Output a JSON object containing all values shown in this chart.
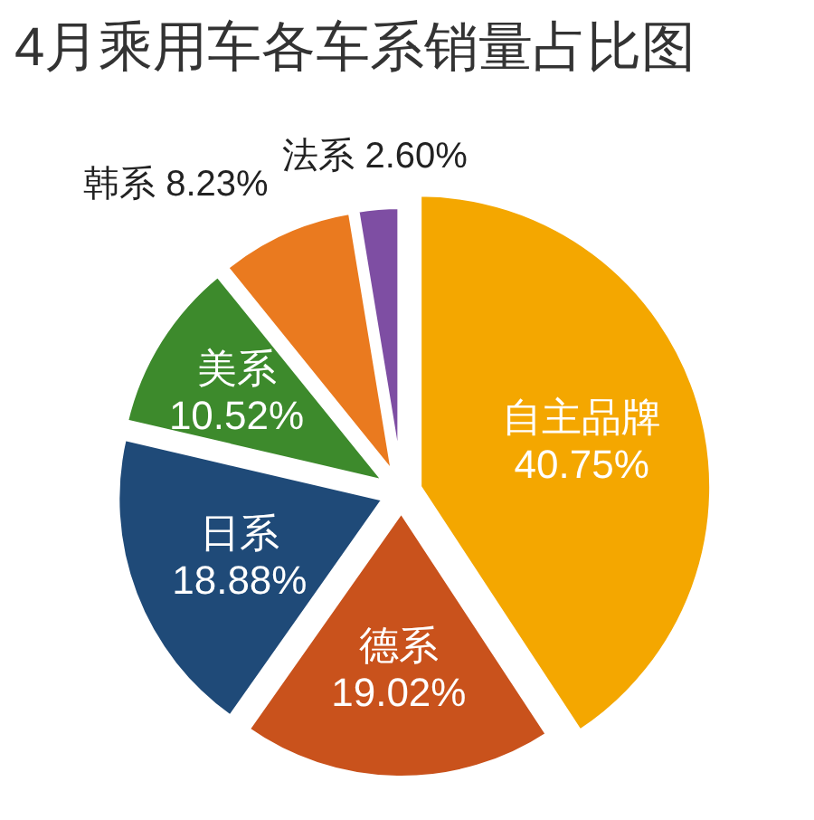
{
  "chart_data": {
    "type": "pie",
    "title": "4月乘用车各车系销量占比图",
    "categories": [
      "自主品牌",
      "德系",
      "日系",
      "美系",
      "韩系",
      "法系"
    ],
    "values": [
      40.75,
      19.02,
      18.88,
      10.52,
      8.23,
      2.6
    ],
    "value_labels": [
      "40.75%",
      "19.02%",
      "18.88%",
      "10.52%",
      "8.23%",
      "2.60%"
    ],
    "colors": [
      "#f4a700",
      "#c9521c",
      "#1f4a78",
      "#3d8a2c",
      "#ea7a1f",
      "#7e4ea3"
    ]
  }
}
